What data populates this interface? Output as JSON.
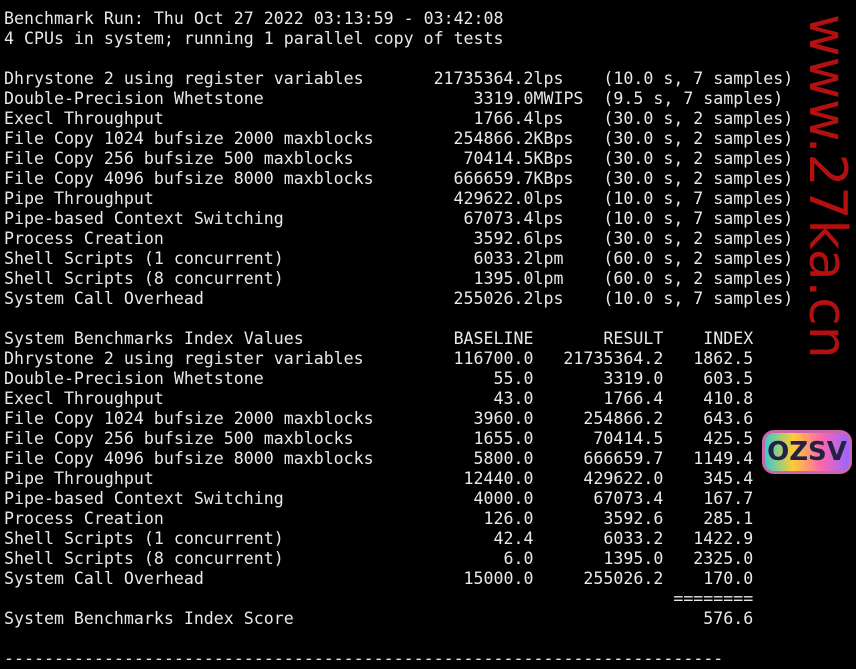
{
  "rule_top": "------------------------------------------------------------------------",
  "header": {
    "run": "Benchmark Run: Thu Oct 27 2022 03:13:59 - 03:42:08",
    "cpus": "4 CPUs in system; running 1 parallel copy of tests"
  },
  "tests": [
    {
      "name": "Dhrystone 2 using register variables",
      "value": "21735364.2",
      "unit": "lps",
      "detail": "(10.0 s, 7 samples)"
    },
    {
      "name": "Double-Precision Whetstone",
      "value": "3319.0",
      "unit": "MWIPS",
      "detail": "(9.5 s, 7 samples)"
    },
    {
      "name": "Execl Throughput",
      "value": "1766.4",
      "unit": "lps",
      "detail": "(30.0 s, 2 samples)"
    },
    {
      "name": "File Copy 1024 bufsize 2000 maxblocks",
      "value": "254866.2",
      "unit": "KBps",
      "detail": "(30.0 s, 2 samples)"
    },
    {
      "name": "File Copy 256 bufsize 500 maxblocks",
      "value": "70414.5",
      "unit": "KBps",
      "detail": "(30.0 s, 2 samples)"
    },
    {
      "name": "File Copy 4096 bufsize 8000 maxblocks",
      "value": "666659.7",
      "unit": "KBps",
      "detail": "(30.0 s, 2 samples)"
    },
    {
      "name": "Pipe Throughput",
      "value": "429622.0",
      "unit": "lps",
      "detail": "(10.0 s, 7 samples)"
    },
    {
      "name": "Pipe-based Context Switching",
      "value": "67073.4",
      "unit": "lps",
      "detail": "(10.0 s, 7 samples)"
    },
    {
      "name": "Process Creation",
      "value": "3592.6",
      "unit": "lps",
      "detail": "(30.0 s, 2 samples)"
    },
    {
      "name": "Shell Scripts (1 concurrent)",
      "value": "6033.2",
      "unit": "lpm",
      "detail": "(60.0 s, 2 samples)"
    },
    {
      "name": "Shell Scripts (8 concurrent)",
      "value": "1395.0",
      "unit": "lpm",
      "detail": "(60.0 s, 2 samples)"
    },
    {
      "name": "System Call Overhead",
      "value": "255026.2",
      "unit": "lps",
      "detail": "(10.0 s, 7 samples)"
    }
  ],
  "index": {
    "title": "System Benchmarks Index Values",
    "col_baseline": "BASELINE",
    "col_result": "RESULT",
    "col_index": "INDEX",
    "rows": [
      {
        "name": "Dhrystone 2 using register variables",
        "baseline": "116700.0",
        "result": "21735364.2",
        "index": "1862.5"
      },
      {
        "name": "Double-Precision Whetstone",
        "baseline": "55.0",
        "result": "3319.0",
        "index": "603.5"
      },
      {
        "name": "Execl Throughput",
        "baseline": "43.0",
        "result": "1766.4",
        "index": "410.8"
      },
      {
        "name": "File Copy 1024 bufsize 2000 maxblocks",
        "baseline": "3960.0",
        "result": "254866.2",
        "index": "643.6"
      },
      {
        "name": "File Copy 256 bufsize 500 maxblocks",
        "baseline": "1655.0",
        "result": "70414.5",
        "index": "425.5"
      },
      {
        "name": "File Copy 4096 bufsize 8000 maxblocks",
        "baseline": "5800.0",
        "result": "666659.7",
        "index": "1149.4"
      },
      {
        "name": "Pipe Throughput",
        "baseline": "12440.0",
        "result": "429622.0",
        "index": "345.4"
      },
      {
        "name": "Pipe-based Context Switching",
        "baseline": "4000.0",
        "result": "67073.4",
        "index": "167.7"
      },
      {
        "name": "Process Creation",
        "baseline": "126.0",
        "result": "3592.6",
        "index": "285.1"
      },
      {
        "name": "Shell Scripts (1 concurrent)",
        "baseline": "42.4",
        "result": "6033.2",
        "index": "1422.9"
      },
      {
        "name": "Shell Scripts (8 concurrent)",
        "baseline": "6.0",
        "result": "1395.0",
        "index": "2325.0"
      },
      {
        "name": "System Call Overhead",
        "baseline": "15000.0",
        "result": "255026.2",
        "index": "170.0"
      }
    ],
    "separator": "========",
    "score_label": "System Benchmarks Index Score",
    "score": "576.6"
  },
  "rule_bottom": "------------------------------------------------------------------------",
  "watermark": {
    "text": "www.27ka.cn",
    "logo": "OZSV",
    "color": "#d21414"
  }
}
